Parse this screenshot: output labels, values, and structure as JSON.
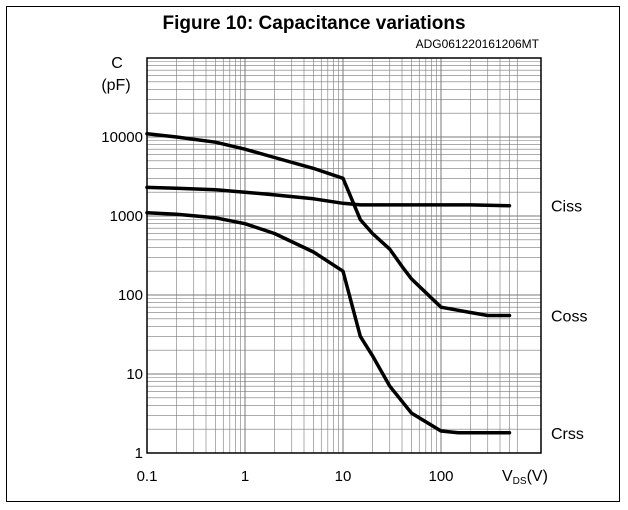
{
  "chart_data": {
    "type": "line",
    "title": "Figure 10: Capacitance variations",
    "code": "ADG061220161206MT",
    "ylabel": {
      "line1": "C",
      "line2": "(pF)"
    },
    "xlabel": {
      "main": "V",
      "sub": "DS",
      "unit": "(V)"
    },
    "xscale": "log",
    "yscale": "log",
    "xlim": [
      0.1,
      600
    ],
    "ylim": [
      1,
      100000
    ],
    "grid": true,
    "x_ticks": [
      "0.1",
      "1",
      "10",
      "100"
    ],
    "y_ticks": [
      "1",
      "10",
      "100",
      "1000",
      "10000"
    ],
    "series": [
      {
        "name": "Ciss",
        "x": [
          0.1,
          0.2,
          0.5,
          1,
          2,
          5,
          10,
          15,
          20,
          50,
          100,
          200,
          500
        ],
        "y": [
          2300,
          2250,
          2150,
          2000,
          1850,
          1650,
          1450,
          1380,
          1380,
          1380,
          1380,
          1380,
          1350
        ]
      },
      {
        "name": "Coss",
        "x": [
          0.1,
          0.2,
          0.5,
          1,
          2,
          5,
          10,
          15,
          20,
          30,
          40,
          50,
          100,
          200,
          300,
          500
        ],
        "y": [
          11000,
          10000,
          8600,
          7000,
          5500,
          4000,
          3000,
          900,
          600,
          380,
          230,
          160,
          70,
          60,
          55,
          55
        ]
      },
      {
        "name": "Crss",
        "x": [
          0.1,
          0.2,
          0.5,
          1,
          2,
          5,
          10,
          15,
          20,
          30,
          50,
          100,
          150,
          200,
          300,
          500
        ],
        "y": [
          1100,
          1050,
          950,
          800,
          600,
          350,
          200,
          30,
          17,
          7,
          3.2,
          1.9,
          1.8,
          1.8,
          1.8,
          1.8
        ]
      }
    ]
  }
}
